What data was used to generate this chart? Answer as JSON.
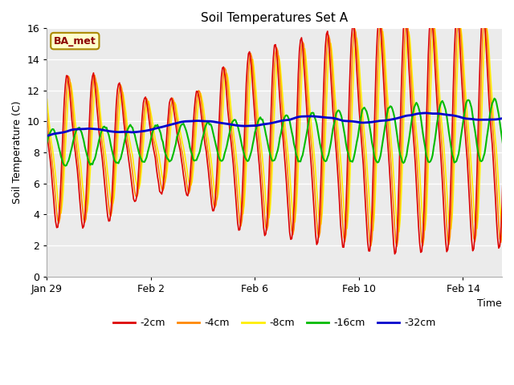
{
  "title": "Soil Temperatures Set A",
  "ylabel": "Soil Temperature (C)",
  "xlabel": "Time",
  "annotation": "BA_met",
  "ylim": [
    0,
    16
  ],
  "yticks": [
    0,
    2,
    4,
    6,
    8,
    10,
    12,
    14,
    16
  ],
  "plot_bg_color": "#ebebeb",
  "fig_bg_color": "#ffffff",
  "series": [
    {
      "label": "-2cm",
      "color": "#dd0000",
      "lw": 1.2
    },
    {
      "label": "-4cm",
      "color": "#ff8800",
      "lw": 1.2
    },
    {
      "label": "-8cm",
      "color": "#ffee00",
      "lw": 1.2
    },
    {
      "label": "-16cm",
      "color": "#00bb00",
      "lw": 1.5
    },
    {
      "label": "-32cm",
      "color": "#0000cc",
      "lw": 2.0
    }
  ],
  "n_days": 18,
  "tick_labels": [
    "Jan 29",
    "Feb 2",
    "Feb 6",
    "Feb 10",
    "Feb 14"
  ],
  "tick_offsets_days": [
    0,
    4,
    8,
    12,
    16
  ]
}
